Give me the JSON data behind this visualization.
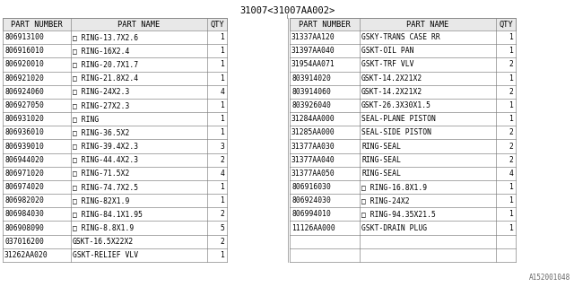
{
  "title": "31007<31007AA002>",
  "footer": "A152001048",
  "headers_left": [
    "PART NUMBER",
    "PART NAME",
    "QTY"
  ],
  "headers_right": [
    "PART NUMBER",
    "PART NAME",
    "QTY"
  ],
  "left_rows": [
    [
      "806913100",
      "□ RING-13.7X2.6",
      "1"
    ],
    [
      "806916010",
      "□ RING-16X2.4",
      "1"
    ],
    [
      "806920010",
      "□ RING-20.7X1.7",
      "1"
    ],
    [
      "806921020",
      "□ RING-21.8X2.4",
      "1"
    ],
    [
      "806924060",
      "□ RING-24X2.3",
      "4"
    ],
    [
      "806927050",
      "□ RING-27X2.3",
      "1"
    ],
    [
      "806931020",
      "□ RING",
      "1"
    ],
    [
      "806936010",
      "□ RING-36.5X2",
      "1"
    ],
    [
      "806939010",
      "□ RING-39.4X2.3",
      "3"
    ],
    [
      "806944020",
      "□ RING-44.4X2.3",
      "2"
    ],
    [
      "806971020",
      "□ RING-71.5X2",
      "4"
    ],
    [
      "806974020",
      "□ RING-74.7X2.5",
      "1"
    ],
    [
      "806982020",
      "□ RING-82X1.9",
      "1"
    ],
    [
      "806984030",
      "□ RING-84.1X1.95",
      "2"
    ],
    [
      "806908090",
      "□ RING-8.8X1.9",
      "5"
    ],
    [
      "037016200",
      "GSKT-16.5X22X2",
      "2"
    ],
    [
      "31262AA020",
      "GSKT-RELIEF VLV",
      "1"
    ]
  ],
  "right_rows": [
    [
      "31337AA120",
      "GSKY-TRANS CASE RR",
      "1"
    ],
    [
      "31397AA040",
      "GSKT-OIL PAN",
      "1"
    ],
    [
      "31954AA071",
      "GSKT-TRF VLV",
      "2"
    ],
    [
      "803914020",
      "GSKT-14.2X21X2",
      "1"
    ],
    [
      "803914060",
      "GSKT-14.2X21X2",
      "2"
    ],
    [
      "803926040",
      "GSKT-26.3X30X1.5",
      "1"
    ],
    [
      "31284AA000",
      "SEAL-PLANE PISTON",
      "1"
    ],
    [
      "31285AA000",
      "SEAL-SIDE PISTON",
      "2"
    ],
    [
      "31377AA030",
      "RING-SEAL",
      "2"
    ],
    [
      "31377AA040",
      "RING-SEAL",
      "2"
    ],
    [
      "31377AA050",
      "RING-SEAL",
      "4"
    ],
    [
      "806916030",
      "□ RING-16.8X1.9",
      "1"
    ],
    [
      "806924030",
      "□ RING-24X2",
      "1"
    ],
    [
      "806994010",
      "□ RING-94.35X21.5",
      "1"
    ],
    [
      "11126AA000",
      "GSKT-DRAIN PLUG",
      "1"
    ],
    [
      "",
      "",
      ""
    ],
    [
      "",
      "",
      ""
    ]
  ],
  "bg_color": "#ffffff",
  "text_color": "#000000",
  "title_color": "#000000",
  "font_size": 5.8,
  "header_font_size": 6.2,
  "title_font_size": 7.5,
  "footer_font_size": 5.5
}
